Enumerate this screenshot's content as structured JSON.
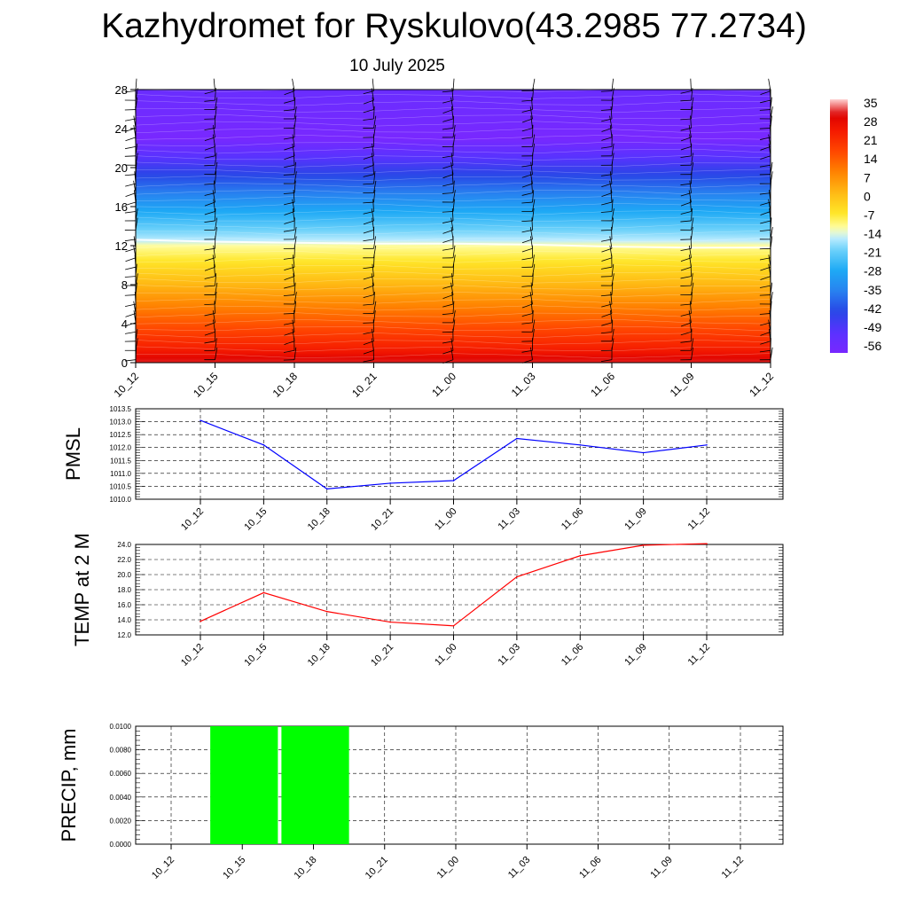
{
  "header": {
    "title": "Kazhydromet for Ryskulovo(43.2985 77.2734)",
    "date": "10 July 2025"
  },
  "chart_data": [
    {
      "type": "heatmap",
      "title": "",
      "xlabel": "",
      "ylabel": "",
      "x_tick_labels": [
        "10_12",
        "10_15",
        "10_18",
        "10_21",
        "11_00",
        "11_03",
        "11_06",
        "11_09",
        "11_12"
      ],
      "y_ticks": [
        0,
        4,
        8,
        12,
        16,
        20,
        24,
        28
      ],
      "ylim": [
        0,
        28
      ],
      "colorbar_labels": [
        35,
        28,
        21,
        14,
        7,
        0,
        -7,
        -14,
        -21,
        -28,
        -35,
        -42,
        -49,
        -56
      ],
      "colorbar_range": [
        -60,
        38
      ],
      "freezing_level": [
        12.6,
        12.4,
        12.3,
        12.2,
        12.2,
        12.1,
        11.9,
        11.8,
        11.8
      ],
      "colors": {
        "warm": "#ff2200",
        "cold": "#7722ff"
      }
    },
    {
      "type": "line",
      "ylabel": "PMSL",
      "categories": [
        "10_12",
        "10_15",
        "10_18",
        "10_21",
        "11_00",
        "11_03",
        "11_06",
        "11_09",
        "11_12"
      ],
      "values": [
        1013.05,
        1012.1,
        1010.4,
        1010.62,
        1010.72,
        1012.35,
        1012.1,
        1011.8,
        1012.1
      ],
      "ylim": [
        1010.0,
        1013.5
      ],
      "y_ticks": [
        "1010.0",
        "1010.5",
        "1011.0",
        "1011.5",
        "1012.0",
        "1012.5",
        "1013.0",
        "1013.5"
      ],
      "color": "#0000ff",
      "grid": true
    },
    {
      "type": "line",
      "ylabel": "TEMP at 2 M",
      "categories": [
        "10_12",
        "10_15",
        "10_18",
        "10_21",
        "11_00",
        "11_03",
        "11_06",
        "11_09",
        "11_12"
      ],
      "values": [
        13.8,
        17.6,
        15.1,
        13.7,
        13.2,
        19.7,
        22.5,
        23.9,
        24.1
      ],
      "ylim": [
        12.0,
        24.0
      ],
      "y_ticks": [
        "12.0",
        "14.0",
        "16.0",
        "18.0",
        "20.0",
        "22.0",
        "24.0"
      ],
      "color": "#ff0000",
      "grid": true
    },
    {
      "type": "bar",
      "ylabel": "PRECIP, mm",
      "categories": [
        "10_12",
        "10_15",
        "10_18",
        "10_21",
        "11_00",
        "11_03",
        "11_06",
        "11_09",
        "11_12"
      ],
      "values": [
        0,
        0.01,
        0.01,
        0,
        0,
        0,
        0,
        0,
        0
      ],
      "ylim": [
        0,
        0.01
      ],
      "y_ticks": [
        "0.0000",
        "0.0020",
        "0.0040",
        "0.0060",
        "0.0080",
        "0.0100"
      ],
      "color": "#00ff00",
      "grid": true
    }
  ]
}
